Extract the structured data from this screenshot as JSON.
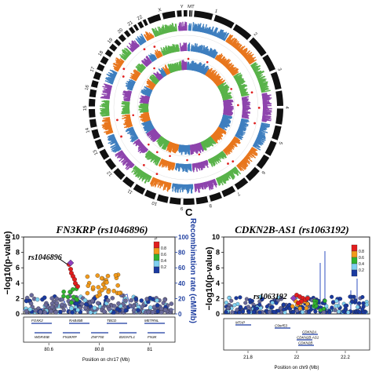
{
  "panel_label": "C",
  "circos": {
    "chromosome_labels": [
      "1",
      "2",
      "3",
      "4",
      "5",
      "6",
      "7",
      "8",
      "9",
      "10",
      "11",
      "12",
      "13",
      "14",
      "15",
      "16",
      "17",
      "18",
      "19",
      "20",
      "21",
      "22",
      "X",
      "Y",
      "MT"
    ],
    "track_colors": [
      "#3f7fbf",
      "#e8771e",
      "#59b34a",
      "#8e44ad"
    ],
    "highlight_color": "#e02020",
    "ideogram_color": "#111111"
  },
  "left_plot": {
    "title": "FN3KRP (rs1046896)",
    "ylabel": "−log10(p-value)",
    "y2label": "Recombination rate (cM/Mb)",
    "y_ticks": [
      "0",
      "2",
      "4",
      "6",
      "8",
      "10"
    ],
    "y2_ticks": [
      "0",
      "20",
      "40",
      "60",
      "80",
      "100"
    ],
    "lead_snp": "rs1046896",
    "legend_title": "r²",
    "legend_values": [
      "0.8",
      "0.6",
      "0.4",
      "0.2"
    ],
    "legend_colors": [
      "#e21d1d",
      "#f29a1b",
      "#2fb32f",
      "#7fd0f0",
      "#1a3aa0"
    ],
    "genes_top": [
      "FOXK2",
      "RAB40B",
      "TBCD",
      "METRNL"
    ],
    "genes_bottom": [
      "WDR45B",
      "FN3KRP",
      "ZNF750",
      "B3GNTL1",
      "FN3K"
    ],
    "x_ticks": [
      "80.6",
      "80.8",
      "81"
    ],
    "xlabel": "Position on chr17 (Mb)"
  },
  "right_plot": {
    "title": "CDKN2B-AS1 (rs1063192)",
    "ylabel": "−log10(p-value)",
    "y_ticks": [
      "0",
      "2",
      "4",
      "6",
      "8",
      "10"
    ],
    "lead_snp": "rs1063192",
    "legend_values": [
      "0.8",
      "0.6",
      "0.4",
      "0.2"
    ],
    "legend_colors": [
      "#e21d1d",
      "#f29a1b",
      "#2fb32f",
      "#7fd0f0",
      "#1a3aa0"
    ],
    "genes": [
      "MTAP",
      "C9orf53",
      "CDKN2A",
      "CDKN2B-AS1",
      "CDKN2B"
    ],
    "x_ticks": [
      "21.8",
      "22",
      "22.2"
    ],
    "xlabel": "Position on chr9 (Mb)"
  }
}
